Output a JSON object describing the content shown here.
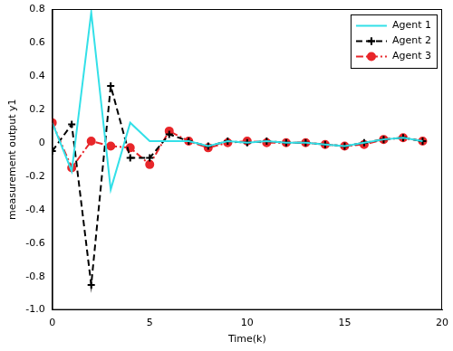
{
  "chart_data": {
    "type": "line",
    "x_label": "Time(k)",
    "y_label": "measurement output y1",
    "x": [
      0,
      1,
      2,
      3,
      4,
      5,
      6,
      7,
      8,
      9,
      10,
      11,
      12,
      13,
      14,
      15,
      16,
      17,
      18,
      19
    ],
    "series": [
      {
        "name": "Agent 1",
        "color": "#33e0e8",
        "line_style": "solid",
        "marker": "none",
        "values": [
          0.12,
          -0.17,
          0.78,
          -0.28,
          0.12,
          0.01,
          0.01,
          0.01,
          -0.02,
          0.01,
          0.0,
          0.01,
          0.0,
          0.0,
          -0.01,
          -0.02,
          0.0,
          0.02,
          0.03,
          0.01
        ]
      },
      {
        "name": "Agent 2",
        "color": "#000000",
        "line_style": "dashed",
        "marker": "plus",
        "values": [
          -0.05,
          0.11,
          -0.85,
          0.34,
          -0.09,
          -0.09,
          0.05,
          0.01,
          -0.02,
          0.01,
          0.0,
          0.01,
          0.0,
          0.0,
          -0.01,
          -0.02,
          0.0,
          0.02,
          0.03,
          0.01
        ]
      },
      {
        "name": "Agent 3",
        "color": "#e8262a",
        "line_style": "dashdot",
        "marker": "circle",
        "values": [
          0.12,
          -0.15,
          0.01,
          -0.02,
          -0.03,
          -0.13,
          0.07,
          0.01,
          -0.03,
          0.0,
          0.01,
          0.0,
          0.0,
          0.0,
          -0.01,
          -0.02,
          -0.01,
          0.02,
          0.03,
          0.01
        ]
      }
    ],
    "xlim": [
      0,
      20
    ],
    "xticks": [
      0,
      5,
      10,
      15,
      20
    ],
    "ylim": [
      -1,
      0.8
    ],
    "yticks": [
      -1,
      -0.8,
      -0.6,
      -0.4,
      -0.2,
      0,
      0.2,
      0.4,
      0.6,
      0.8
    ],
    "grid": false,
    "legend": "upper right"
  }
}
